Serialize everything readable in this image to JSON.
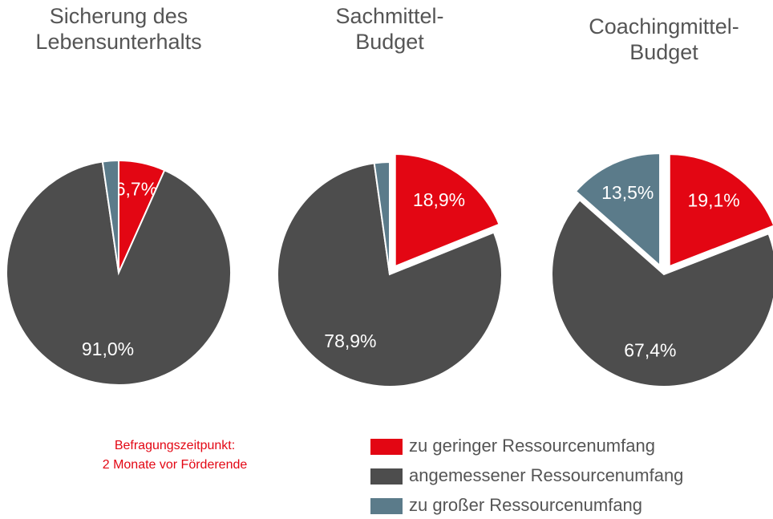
{
  "chart_data": [
    {
      "type": "pie",
      "title": [
        "Sicherung des",
        "Lebensunterhalts"
      ],
      "values": [
        6.7,
        91.0,
        2.3
      ],
      "value_labels": [
        "6,7%",
        "91,0%",
        null
      ],
      "exploded": [
        false,
        false,
        false
      ]
    },
    {
      "type": "pie",
      "title": [
        "Sachmittel-",
        "Budget"
      ],
      "values": [
        18.9,
        78.9,
        2.2
      ],
      "value_labels": [
        "18,9%",
        "78,9%",
        null
      ],
      "exploded": [
        true,
        false,
        false
      ]
    },
    {
      "type": "pie",
      "title": [
        "Coachingmittel-",
        "Budget"
      ],
      "values": [
        19.1,
        67.4,
        13.5
      ],
      "value_labels": [
        "19,1%",
        "67,4%",
        "13,5%"
      ],
      "exploded": [
        true,
        false,
        true
      ]
    }
  ],
  "legend": {
    "labels": [
      "zu geringer Ressourcenumfang",
      "angemessener Ressourcenumfang",
      "zu großer Ressourcenumfang"
    ],
    "colors": [
      "#e30613",
      "#4d4d4d",
      "#5b7b8a"
    ]
  },
  "annotation": [
    "Befragungszeitpunkt:",
    "2 Monate vor Förderende"
  ]
}
